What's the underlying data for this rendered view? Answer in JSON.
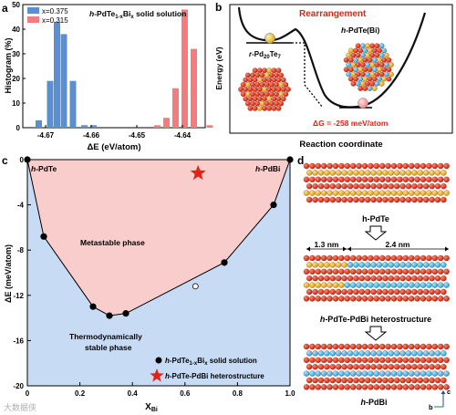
{
  "panels": {
    "a": "a",
    "b": "b",
    "c": "c",
    "d": "d"
  },
  "panel_a": {
    "title_prefix": "h",
    "title_main": "-PdTe",
    "title_sub": "1-x",
    "title_bi": "Bi",
    "title_x": "x",
    "title_suffix": " solid solution",
    "ylabel": "Histogram (%)",
    "xlabel": "ΔE (eV/atom)",
    "legend": [
      "x=0.375",
      "x=0.315"
    ],
    "colors": [
      "#5b8fcf",
      "#f37c7c"
    ]
  },
  "chart_data": [
    {
      "type": "bar",
      "title": "h-PdTe1-xBix solid solution",
      "xlabel": "ΔE (eV/atom)",
      "ylabel": "Histogram (%)",
      "xlim": [
        -4.675,
        -4.635
      ],
      "ylim": [
        0,
        50
      ],
      "xticks": [
        -4.67,
        -4.66,
        -4.65,
        -4.64
      ],
      "xtick_labels": [
        "-4.67",
        "-4.66",
        "-4.65",
        "-4.64"
      ],
      "yticks": [
        0,
        10,
        20,
        30,
        40,
        50
      ],
      "series": [
        {
          "name": "x=0.375",
          "x": [
            -4.6715,
            -4.669,
            -4.6675,
            -4.666,
            -4.664,
            -4.6615,
            -4.6595
          ],
          "values": [
            3,
            19,
            43,
            38,
            19,
            1,
            1
          ]
        },
        {
          "name": "x=0.315",
          "x": [
            -4.6455,
            -4.6435,
            -4.6415,
            -4.6395,
            -4.6375,
            -4.634
          ],
          "values": [
            1,
            4,
            16,
            48,
            32,
            1
          ]
        }
      ]
    },
    {
      "type": "scatter",
      "xlabel": "X",
      "xlabel_sub": "Bi",
      "ylabel": "ΔE (meV/atom)",
      "xlim": [
        0,
        1
      ],
      "ylim": [
        -20,
        0
      ],
      "xticks": [
        0,
        0.2,
        0.4,
        0.6,
        0.8,
        1.0
      ],
      "xtick_labels": [
        "0",
        "0.2",
        "0.4",
        "0.6",
        "0.8",
        "1.0"
      ],
      "yticks": [
        0,
        -4,
        -8,
        -12,
        -16,
        -20
      ],
      "ytick_labels": [
        "0",
        "-4",
        "-8",
        "-12",
        "-16",
        "-20"
      ],
      "hull": {
        "x": [
          0,
          0.0625,
          0.25,
          0.3125,
          0.375,
          0.75,
          0.9375,
          1.0
        ],
        "y": [
          0,
          -6.8,
          -13,
          -13.8,
          -13.6,
          -9.1,
          -4,
          0
        ]
      },
      "solid_points": {
        "x": [
          0,
          0.0625,
          0.25,
          0.3125,
          0.375,
          0.75,
          0.9375,
          1.0
        ],
        "y": [
          0,
          -6.8,
          -13,
          -13.8,
          -13.6,
          -9.1,
          -4,
          0
        ]
      },
      "open_points": {
        "x": [
          0.64
        ],
        "y": [
          -11.2
        ]
      },
      "star": {
        "x": 0.65,
        "y": -1.2
      },
      "labels": {
        "left_end": "-PdTe",
        "right_end": "-PdBi",
        "metastable": "Metastable phase",
        "stable_1": "Thermodynamically",
        "stable_2": "stable phase"
      },
      "legend": [
        {
          "prefix": "h",
          "main": "-PdTe",
          "sub1": "1-x",
          "bi": "Bi",
          "sub2": "x",
          "suffix": " solid solution"
        },
        {
          "prefix": "h",
          "main": "-PdTe-PdBi heterostructure"
        }
      ]
    }
  ],
  "panel_b": {
    "title": "Rearrangement",
    "ylabel": "Energy (eV)",
    "xlabel": "Reaction coordinate",
    "left_label_prefix": "r",
    "left_label_main": "-Pd",
    "left_label_sub1": "20",
    "left_label_te": "Te",
    "left_label_sub2": "7",
    "right_label_prefix": "h",
    "right_label_main": "-PdTe(Bi)",
    "dg": "ΔG = -258 meV/atom"
  },
  "panel_d": {
    "top_label": "h-PdTe",
    "left_width": "1.3 nm",
    "right_width": "2.4 nm",
    "middle_label": "h-PdTe-PdBi heterostructure",
    "bottom_label": "h-PdBi",
    "axis_c": "c",
    "axis_b": "b"
  },
  "watermark": "大数据侠"
}
